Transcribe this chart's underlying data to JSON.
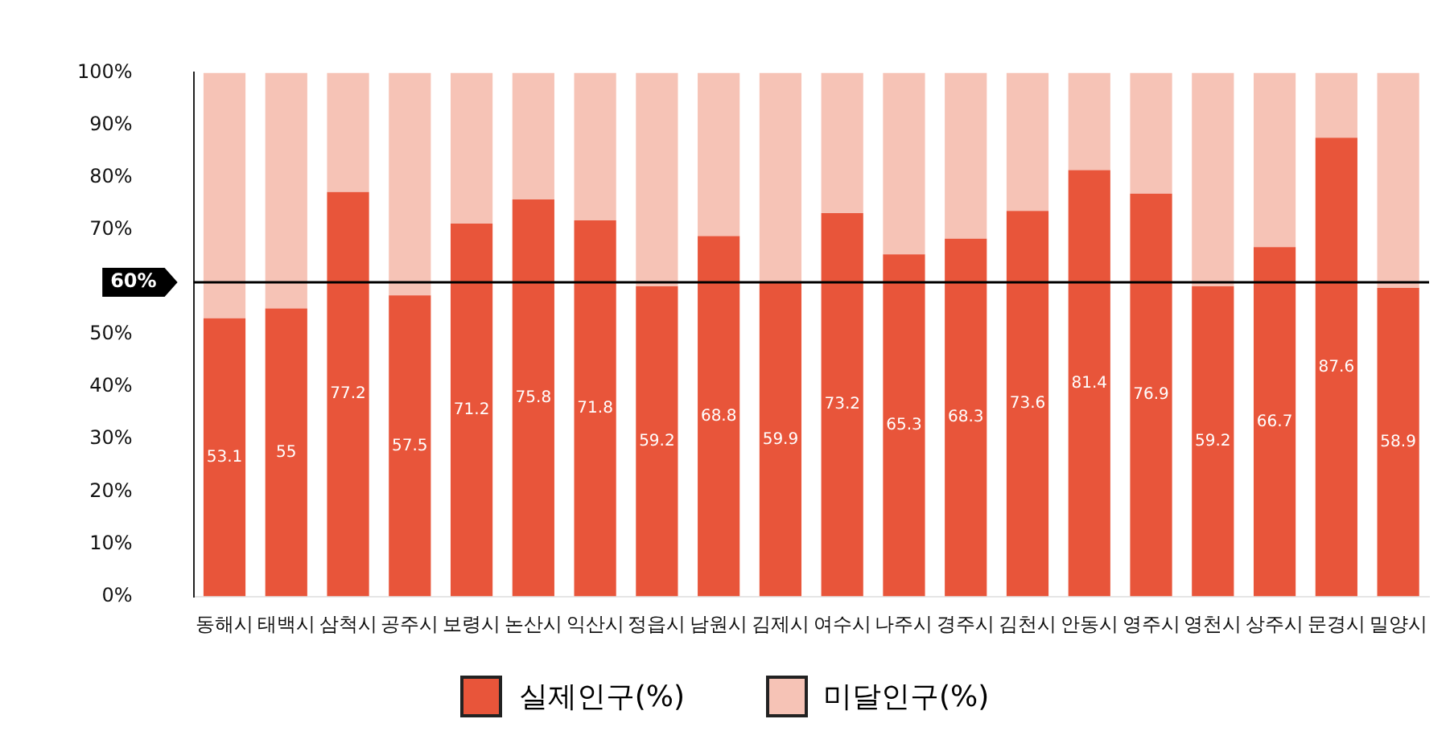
{
  "chart_data": {
    "type": "bar",
    "stacked": true,
    "categories": [
      "동해시",
      "태백시",
      "삼척시",
      "공주시",
      "보령시",
      "논산시",
      "익산시",
      "정읍시",
      "남원시",
      "김제시",
      "여수시",
      "나주시",
      "경주시",
      "김천시",
      "안동시",
      "영주시",
      "영천시",
      "상주시",
      "문경시",
      "밀양시"
    ],
    "series": [
      {
        "name": "실제인구(%)",
        "color": "#e8553a",
        "values": [
          53.1,
          55,
          77.2,
          57.5,
          71.2,
          75.8,
          71.8,
          59.2,
          68.8,
          59.9,
          73.2,
          65.3,
          68.3,
          73.6,
          81.4,
          76.9,
          59.2,
          66.7,
          87.6,
          58.9
        ],
        "value_labels": [
          "53.1",
          "55",
          "77.2",
          "57.5",
          "71.2",
          "75.8",
          "71.8",
          "59.2",
          "68.8",
          "59.9",
          "73.2",
          "65.3",
          "68.3",
          "73.6",
          "81.4",
          "76.9",
          "59.2",
          "66.7",
          "87.6",
          "58.9"
        ]
      },
      {
        "name": "미달인구(%)",
        "color": "#f6c3b6",
        "values": [
          46.9,
          45,
          22.8,
          42.5,
          28.8,
          24.2,
          28.2,
          40.8,
          31.2,
          40.1,
          26.8,
          34.7,
          31.7,
          26.4,
          18.6,
          23.1,
          40.8,
          33.3,
          12.4,
          41.1
        ]
      }
    ],
    "ylim": [
      0,
      100
    ],
    "yticks": [
      {
        "value": 0,
        "label": "0%"
      },
      {
        "value": 10,
        "label": "10%"
      },
      {
        "value": 20,
        "label": "20%"
      },
      {
        "value": 30,
        "label": "30%"
      },
      {
        "value": 40,
        "label": "40%"
      },
      {
        "value": 50,
        "label": "50%"
      },
      {
        "value": 60,
        "label": null
      },
      {
        "value": 70,
        "label": "70%"
      },
      {
        "value": 80,
        "label": "80%"
      },
      {
        "value": 90,
        "label": "90%"
      },
      {
        "value": 100,
        "label": "100%"
      }
    ],
    "ref_lines": [
      {
        "axis": "y",
        "value": 60,
        "label": "60%",
        "color": "#000000"
      }
    ],
    "legend": "bottom"
  }
}
